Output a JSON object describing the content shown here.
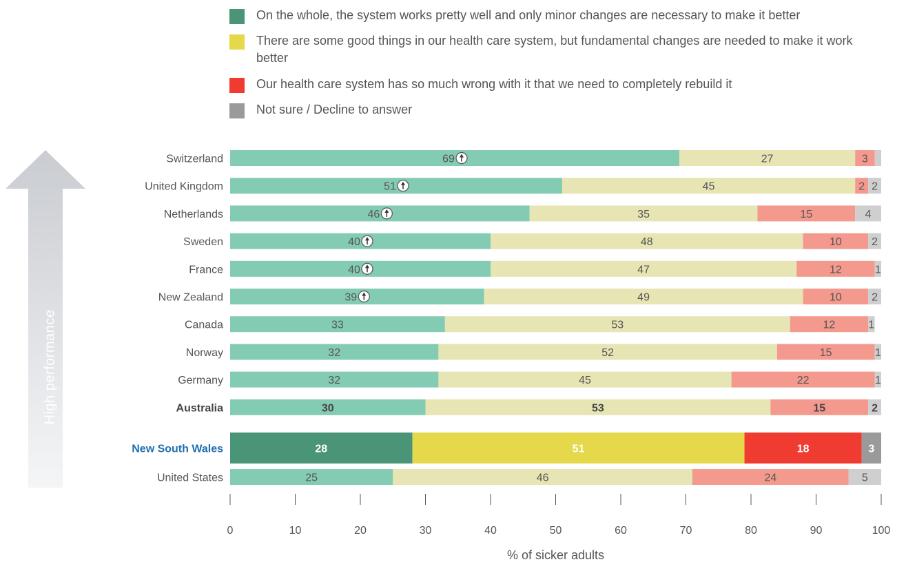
{
  "side_label": "High performance",
  "colors": {
    "green": "#4a9478",
    "yellow": "#e5d84a",
    "red": "#ef3b30",
    "grey": "#9a9a9a",
    "green_light": "#84cbb3",
    "yellow_light": "#e6e5b3",
    "red_light": "#f4998e",
    "grey_light": "#cfcfcf",
    "highlight_label": "#1f6fb2",
    "arrow": "#e3e5e9"
  },
  "chart_data": {
    "type": "bar",
    "orientation": "horizontal",
    "stacked": true,
    "xlabel": "% of sicker adults",
    "xlim": [
      0,
      100
    ],
    "xticks": [
      0,
      10,
      20,
      30,
      40,
      50,
      60,
      70,
      80,
      90,
      100
    ],
    "series": [
      {
        "name": "On the whole, the system works pretty well and only minor changes are necessary to make it better",
        "color": "#4a9478"
      },
      {
        "name": "There are some good things in our health care system, but fundamental changes are needed to make it work better",
        "color": "#e5d84a"
      },
      {
        "name": "Our health care system has so much wrong with it that we need to completely rebuild it",
        "color": "#ef3b30"
      },
      {
        "name": "Not sure / Decline to answer",
        "color": "#9a9a9a"
      }
    ],
    "rows": [
      {
        "label": "Switzerland",
        "values": [
          69,
          27,
          3,
          1
        ],
        "labels": [
          "69",
          "27",
          "3",
          ""
        ],
        "up_arrow": true,
        "style": "normal"
      },
      {
        "label": "United Kingdom",
        "values": [
          51,
          45,
          2,
          2
        ],
        "labels": [
          "51",
          "45",
          "2",
          "2"
        ],
        "up_arrow": true,
        "style": "normal"
      },
      {
        "label": "Netherlands",
        "values": [
          46,
          35,
          15,
          4
        ],
        "labels": [
          "46",
          "35",
          "15",
          "4"
        ],
        "up_arrow": true,
        "style": "normal"
      },
      {
        "label": "Sweden",
        "values": [
          40,
          48,
          10,
          2
        ],
        "labels": [
          "40",
          "48",
          "10",
          "2"
        ],
        "up_arrow": true,
        "style": "normal"
      },
      {
        "label": "France",
        "values": [
          40,
          47,
          12,
          1
        ],
        "labels": [
          "40",
          "47",
          "12",
          "1"
        ],
        "up_arrow": true,
        "style": "normal"
      },
      {
        "label": "New Zealand",
        "values": [
          39,
          49,
          10,
          2
        ],
        "labels": [
          "39",
          "49",
          "10",
          "2"
        ],
        "up_arrow": true,
        "style": "normal"
      },
      {
        "label": "Canada",
        "values": [
          33,
          53,
          12,
          1
        ],
        "labels": [
          "33",
          "53",
          "12",
          "1"
        ],
        "up_arrow": false,
        "style": "normal"
      },
      {
        "label": "Norway",
        "values": [
          32,
          52,
          15,
          1
        ],
        "labels": [
          "32",
          "52",
          "15",
          "1"
        ],
        "up_arrow": false,
        "style": "normal"
      },
      {
        "label": "Germany",
        "values": [
          32,
          45,
          22,
          1
        ],
        "labels": [
          "32",
          "45",
          "22",
          "1"
        ],
        "up_arrow": false,
        "style": "normal"
      },
      {
        "label": "Australia",
        "values": [
          30,
          53,
          15,
          2
        ],
        "labels": [
          "30",
          "53",
          "15",
          "2"
        ],
        "up_arrow": false,
        "style": "bold"
      },
      {
        "label": "New South Wales",
        "values": [
          28,
          51,
          18,
          3
        ],
        "labels": [
          "28",
          "51",
          "18",
          "3"
        ],
        "up_arrow": false,
        "style": "highlight"
      },
      {
        "label": "United States",
        "values": [
          25,
          46,
          24,
          5
        ],
        "labels": [
          "25",
          "46",
          "24",
          "5"
        ],
        "up_arrow": false,
        "style": "normal"
      }
    ]
  }
}
